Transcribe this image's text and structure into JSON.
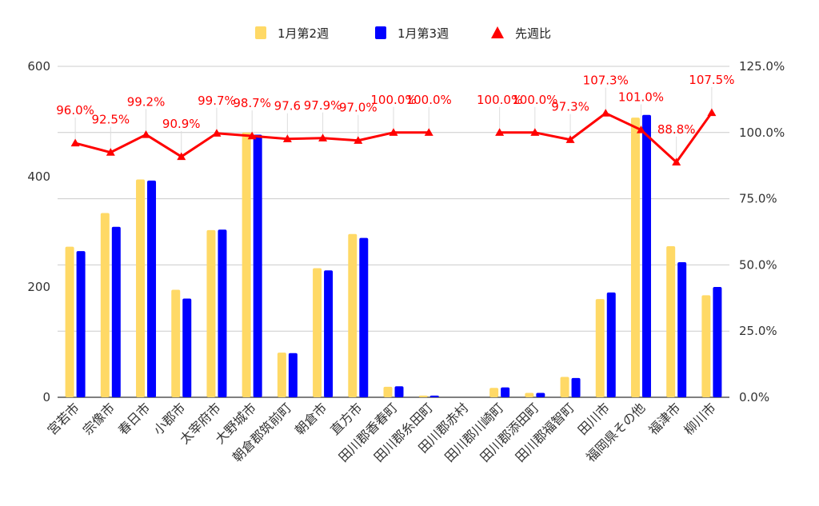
{
  "chart_data": {
    "type": "bar",
    "categories": [
      "宮若市",
      "宗像市",
      "春日市",
      "小郡市",
      "太宰府市",
      "大野城市",
      "朝倉郡筑前町",
      "朝倉市",
      "直方市",
      "田川郡香春町",
      "田川郡糸田町",
      "田川郡赤村",
      "田川郡川崎町",
      "田川郡添田町",
      "田川郡福智町",
      "田川市",
      "福岡県その他",
      "福津市",
      "柳川市"
    ],
    "series": [
      {
        "name": "1月第2週",
        "kind": "bar",
        "axis": "left",
        "color": "#ffd966",
        "values": [
          273,
          334,
          395,
          195,
          303,
          480,
          81,
          234,
          296,
          19,
          3,
          0,
          17,
          8,
          37,
          178,
          507,
          274,
          185
        ]
      },
      {
        "name": "1月第3週",
        "kind": "bar",
        "axis": "left",
        "color": "#0000ff",
        "values": [
          265,
          309,
          393,
          179,
          304,
          476,
          80,
          230,
          289,
          20,
          3,
          0,
          18,
          8,
          35,
          190,
          512,
          245,
          200
        ]
      },
      {
        "name": "先週比",
        "kind": "line",
        "axis": "right",
        "color": "#ff0000",
        "marker": "triangle",
        "values": [
          96.0,
          92.5,
          99.2,
          90.9,
          99.7,
          98.7,
          97.6,
          97.9,
          97.0,
          100.0,
          100.0,
          null,
          100.0,
          100.0,
          97.3,
          107.3,
          101.0,
          88.8,
          107.5
        ],
        "labels": [
          "96.0%",
          "92.5%",
          "99.2%",
          "90.9%",
          "99.7%",
          "98.7%",
          "97.6",
          "97.9%",
          "97.0%",
          "100.0%",
          "100.0%",
          "",
          "100.0%",
          "100.0%",
          "97.3%",
          "107.3%",
          "101.0%",
          "88.8%",
          "107.5%"
        ]
      }
    ],
    "y_left": {
      "ticks": [
        "0",
        "200",
        "400",
        "600"
      ],
      "range": [
        0,
        600
      ]
    },
    "y_right": {
      "ticks": [
        "0.0%",
        "25.0%",
        "50.0%",
        "75.0%",
        "100.0%",
        "125.0%"
      ],
      "range": [
        0,
        125
      ]
    },
    "legend": {
      "position": "top",
      "items": [
        "1月第2週",
        "1月第3週",
        "先週比"
      ]
    },
    "grid": true
  }
}
